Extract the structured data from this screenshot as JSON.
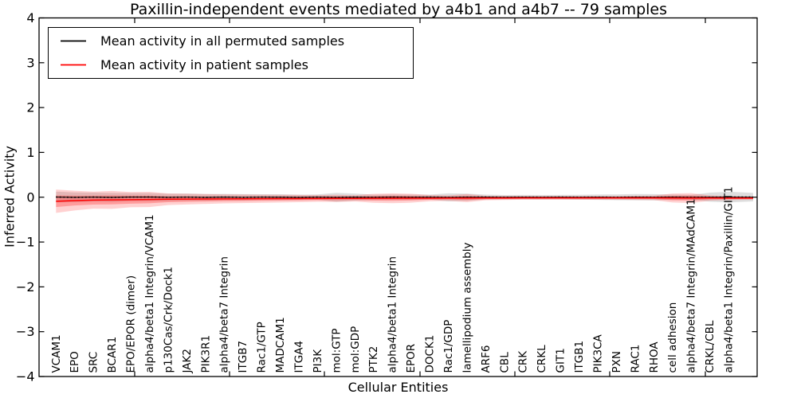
{
  "chart_data": {
    "type": "line",
    "title": "Paxillin-independent events mediated by a4b1 and a4b7 -- 79 samples",
    "xlabel": "Cellular Entities",
    "ylabel": "Inferred Activity",
    "ylim": [
      -4,
      4
    ],
    "yticks": [
      4,
      3,
      2,
      1,
      0,
      -1,
      -2,
      -3,
      -4
    ],
    "grid": false,
    "legend_position": "upper left",
    "legend": [
      {
        "label": "Mean activity in all permuted samples",
        "color": "#000000"
      },
      {
        "label": "Mean activity in patient samples",
        "color": "#ff0000"
      }
    ],
    "categories": [
      "VCAM1",
      "EPO",
      "SRC",
      "BCAR1",
      "EPO/EPOR (dimer)",
      "alpha4/beta1 Integrin/VCAM1",
      "p130Cas/Crk/Dock1",
      "JAK2",
      "PIK3R1",
      "alpha4/beta7 Integrin",
      "ITGB7",
      "Rac1/GTP",
      "MADCAM1",
      "ITGA4",
      "PI3K",
      "mol:GTP",
      "mol:GDP",
      "PTK2",
      "alpha4/beta1 Integrin",
      "EPOR",
      "DOCK1",
      "Rac1/GDP",
      "lamellipodium assembly",
      "ARF6",
      "CBL",
      "CRK",
      "CRKL",
      "GIT1",
      "ITGB1",
      "PIK3CA",
      "PXN",
      "RAC1",
      "RHOA",
      "cell adhesion",
      "alpha4/beta7 Integrin/MAdCAM1",
      "CRKL/CBL",
      "alpha4/beta1 Integrin/Paxillin/GIT1"
    ],
    "series": {
      "permuted_mean": {
        "color": "#000000",
        "values": [
          0.004,
          -0.003,
          0.002,
          -0.004,
          0.003,
          0.004,
          -0.002,
          0.002,
          -0.003,
          0.003,
          -0.002,
          0.002,
          0.001,
          -0.003,
          0.002,
          -0.002,
          0.003,
          -0.002,
          0.002,
          -0.001,
          0.002,
          -0.003,
          0.001,
          0.002,
          -0.002,
          0.001,
          -0.001,
          0.002,
          -0.001,
          0.001,
          -0.002,
          0.002,
          -0.001,
          0.001,
          -0.002,
          0.001,
          0.002
        ]
      },
      "patient_mean": {
        "color": "#ff0000",
        "values": [
          -0.09,
          -0.075,
          -0.065,
          -0.06,
          -0.055,
          -0.05,
          -0.045,
          -0.042,
          -0.04,
          -0.038,
          -0.036,
          -0.034,
          -0.032,
          -0.03,
          -0.028,
          -0.027,
          -0.026,
          -0.025,
          -0.024,
          -0.023,
          -0.022,
          -0.021,
          -0.02,
          -0.018,
          -0.017,
          -0.016,
          -0.016,
          -0.015,
          -0.015,
          -0.015,
          -0.015,
          -0.015,
          -0.015,
          -0.018,
          -0.02,
          -0.018,
          -0.02
        ]
      }
    },
    "bands": [
      {
        "name": "permuted-std-band",
        "fill": "rgba(0,0,0,0.13)",
        "center": "permuted_mean",
        "half": [
          0.12,
          0.11,
          0.1,
          0.1,
          0.09,
          0.09,
          0.08,
          0.08,
          0.075,
          0.07,
          0.07,
          0.065,
          0.065,
          0.06,
          0.06,
          0.1,
          0.08,
          0.06,
          0.06,
          0.06,
          0.055,
          0.09,
          0.08,
          0.055,
          0.05,
          0.05,
          0.05,
          0.05,
          0.055,
          0.06,
          0.065,
          0.07,
          0.07,
          0.06,
          0.055,
          0.1,
          0.12
        ]
      },
      {
        "name": "patient-std-outer-band",
        "fill": "rgba(255,0,0,0.18)",
        "center": "patient_mean",
        "half": [
          0.26,
          0.22,
          0.19,
          0.2,
          0.17,
          0.17,
          0.13,
          0.12,
          0.11,
          0.1,
          0.095,
          0.09,
          0.085,
          0.08,
          0.075,
          0.08,
          0.07,
          0.1,
          0.11,
          0.1,
          0.07,
          0.06,
          0.09,
          0.05,
          0.045,
          0.04,
          0.04,
          0.04,
          0.04,
          0.04,
          0.04,
          0.045,
          0.05,
          0.1,
          0.11,
          0.06,
          0.045
        ]
      },
      {
        "name": "patient-std-inner-band",
        "fill": "rgba(255,0,0,0.25)",
        "center": "patient_mean",
        "half": [
          0.13,
          0.11,
          0.1,
          0.1,
          0.09,
          0.085,
          0.065,
          0.06,
          0.055,
          0.05,
          0.048,
          0.045,
          0.043,
          0.04,
          0.038,
          0.04,
          0.035,
          0.05,
          0.055,
          0.05,
          0.035,
          0.03,
          0.045,
          0.025,
          0.023,
          0.02,
          0.02,
          0.02,
          0.02,
          0.02,
          0.02,
          0.023,
          0.025,
          0.05,
          0.055,
          0.03,
          0.023
        ]
      }
    ]
  }
}
